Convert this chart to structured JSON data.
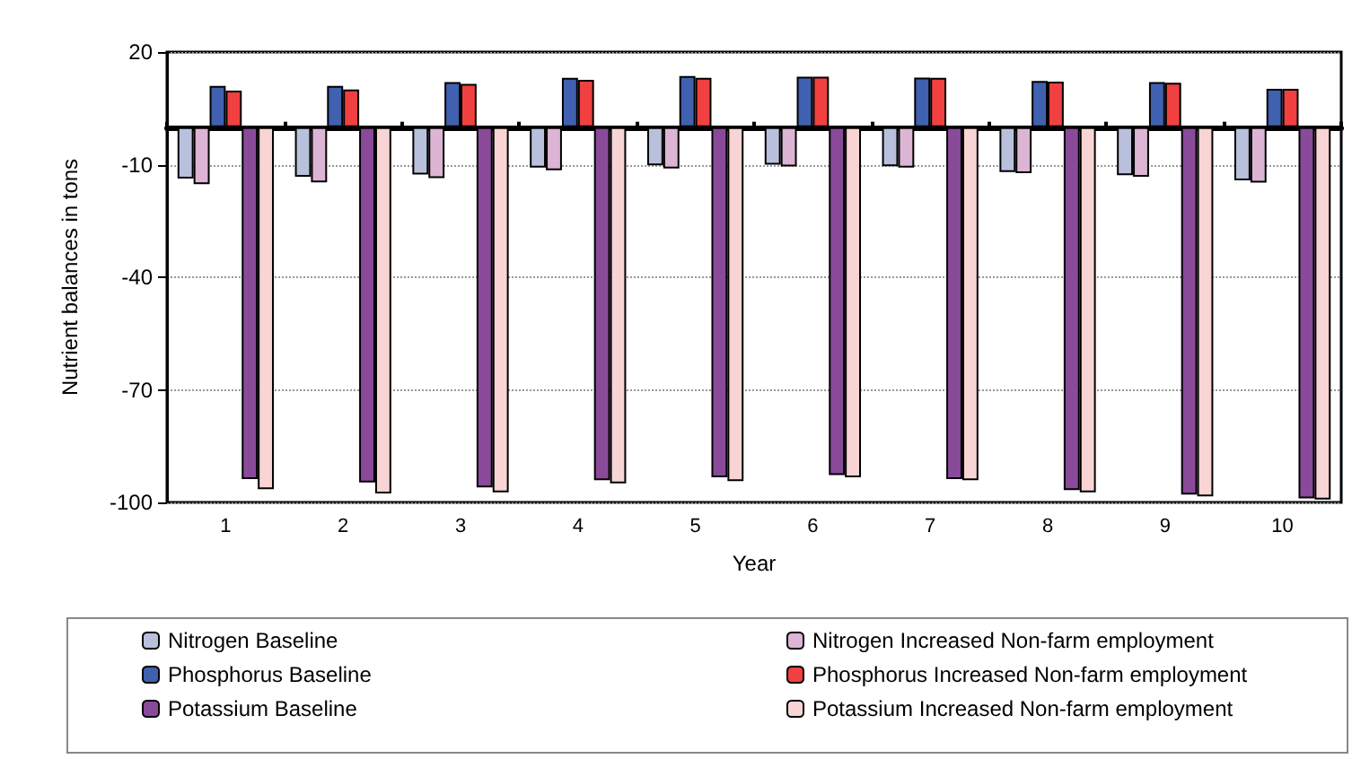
{
  "chart_data": {
    "type": "bar",
    "xlabel": "Year",
    "ylabel": "Nutrient balances in tons",
    "categories": [
      "1",
      "2",
      "3",
      "4",
      "5",
      "6",
      "7",
      "8",
      "9",
      "10"
    ],
    "series": [
      {
        "name": "Nitrogen Baseline",
        "color": "#b8c0dc",
        "values": [
          -13.7,
          -13.2,
          -12.6,
          -10.8,
          -10.2,
          -10,
          -10.4,
          -12,
          -12.8,
          -14.2
        ]
      },
      {
        "name": "Nitrogen Increased Non-farm employment",
        "color": "#dcb4d4",
        "values": [
          -15.2,
          -14.7,
          -13.6,
          -11.5,
          -11,
          -10.5,
          -10.8,
          -12.3,
          -13.2,
          -14.8
        ]
      },
      {
        "name": "Phosphorus Baseline",
        "color": "#4060b0",
        "values": [
          11,
          11,
          12,
          13.1,
          13.6,
          13.4,
          13.2,
          12.3,
          12,
          10.2
        ]
      },
      {
        "name": "Phosphorus Increased Non-farm employment",
        "color": "#f04040",
        "values": [
          9.7,
          10,
          11.5,
          12.6,
          13.1,
          13.4,
          13.1,
          12.1,
          11.8,
          10.2
        ]
      },
      {
        "name": "Potassium Baseline",
        "color": "#8a4a9a",
        "values": [
          -93.8,
          -94.7,
          -96,
          -94.1,
          -93.3,
          -92.7,
          -93.8,
          -96.7,
          -97.9,
          -98.9
        ]
      },
      {
        "name": "Potassium Increased Non-farm employment",
        "color": "#f8d4d4",
        "values": [
          -96.5,
          -97.6,
          -97.3,
          -94.9,
          -94.3,
          -93.3,
          -94.1,
          -97.3,
          -98.4,
          -99.2
        ]
      }
    ],
    "ylim": [
      -100,
      20
    ],
    "yticks": [
      -100,
      -70,
      -40,
      -10,
      20
    ],
    "grid": "y",
    "legend": "bottom"
  }
}
